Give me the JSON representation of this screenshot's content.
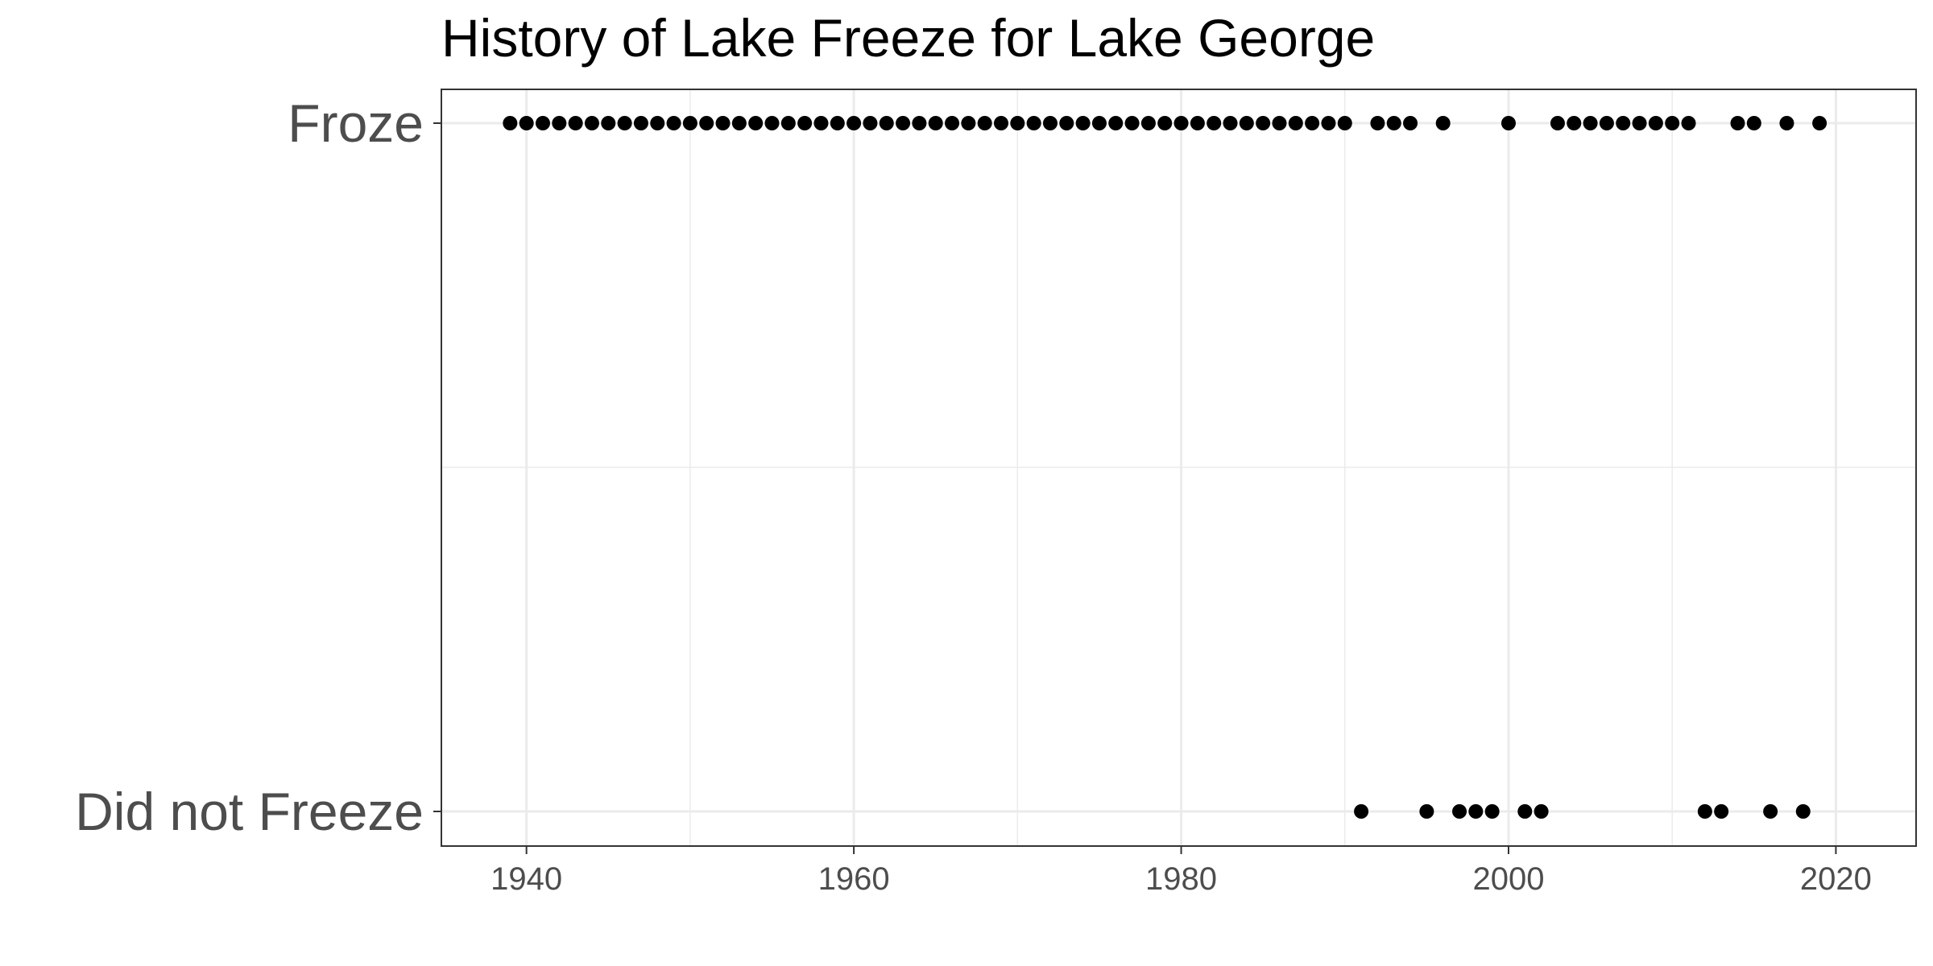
{
  "chart_data": {
    "type": "scatter",
    "title": "History of Lake Freeze for Lake George",
    "xlabel": "",
    "ylabel": "",
    "xlim": [
      1934.8,
      2024.9
    ],
    "x_ticks": [
      1940,
      1960,
      1980,
      2000,
      2020
    ],
    "x_tick_labels": [
      "1940",
      "1960",
      "1980",
      "2000",
      "2020"
    ],
    "y_categories": [
      "Did not Freeze",
      "Froze"
    ],
    "grid": true,
    "legend": "none",
    "point_color": "#000000",
    "grid_color": "#ebebeb",
    "panel_border_color": "#333333",
    "series": [
      {
        "category": "Froze",
        "x": [
          1939,
          1940,
          1941,
          1942,
          1943,
          1944,
          1945,
          1946,
          1947,
          1948,
          1949,
          1950,
          1951,
          1952,
          1953,
          1954,
          1955,
          1956,
          1957,
          1958,
          1959,
          1960,
          1961,
          1962,
          1963,
          1964,
          1965,
          1966,
          1967,
          1968,
          1969,
          1970,
          1971,
          1972,
          1973,
          1974,
          1975,
          1976,
          1977,
          1978,
          1979,
          1980,
          1981,
          1982,
          1983,
          1984,
          1985,
          1986,
          1987,
          1988,
          1989,
          1990,
          1992,
          1993,
          1994,
          1996,
          2000,
          2003,
          2004,
          2005,
          2006,
          2007,
          2008,
          2009,
          2010,
          2011,
          2014,
          2015,
          2017,
          2019
        ]
      },
      {
        "category": "Did not Freeze",
        "x": [
          1991,
          1995,
          1997,
          1998,
          1999,
          2001,
          2002,
          2012,
          2013,
          2016,
          2018
        ]
      }
    ]
  }
}
